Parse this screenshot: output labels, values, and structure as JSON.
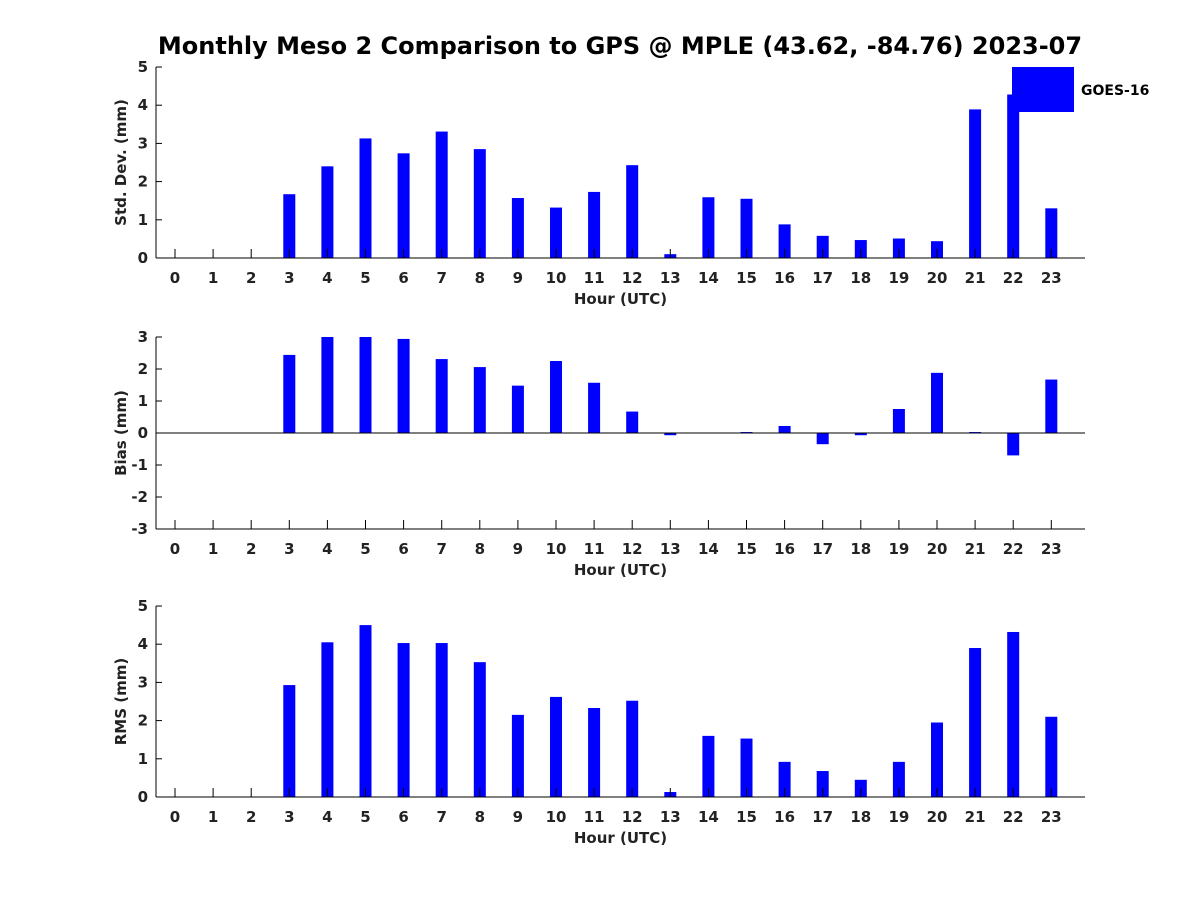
{
  "title": "Monthly Meso 2 Comparison to GPS @ MPLE (43.62, -84.76) 2023-07",
  "legend": {
    "label": "GOES-16",
    "color": "#0000ff"
  },
  "chart_data": [
    {
      "type": "bar",
      "name": "stddev",
      "xlabel": "Hour (UTC)",
      "ylabel": "Std. Dev. (mm)",
      "ylim": [
        0,
        5
      ],
      "yticks": [
        0,
        1,
        2,
        3,
        4,
        5
      ],
      "categories": [
        "0",
        "1",
        "2",
        "3",
        "4",
        "5",
        "6",
        "7",
        "8",
        "9",
        "10",
        "11",
        "12",
        "13",
        "14",
        "15",
        "16",
        "17",
        "18",
        "19",
        "20",
        "21",
        "22",
        "23"
      ],
      "values": [
        0,
        0,
        0,
        1.67,
        2.4,
        3.13,
        2.74,
        3.31,
        2.85,
        1.57,
        1.32,
        1.73,
        2.43,
        0.1,
        1.59,
        1.55,
        0.88,
        0.58,
        0.47,
        0.51,
        0.44,
        3.89,
        4.28,
        1.3
      ],
      "color": "#0000ff"
    },
    {
      "type": "bar",
      "name": "bias",
      "xlabel": "Hour (UTC)",
      "ylabel": "Bias (mm)",
      "ylim": [
        -3,
        3
      ],
      "yticks": [
        -3,
        -2,
        -1,
        0,
        1,
        2,
        3
      ],
      "categories": [
        "0",
        "1",
        "2",
        "3",
        "4",
        "5",
        "6",
        "7",
        "8",
        "9",
        "10",
        "11",
        "12",
        "13",
        "14",
        "15",
        "16",
        "17",
        "18",
        "19",
        "20",
        "21",
        "22",
        "23"
      ],
      "values": [
        0,
        0,
        0,
        2.44,
        3.0,
        3.0,
        2.94,
        2.31,
        2.06,
        1.48,
        2.25,
        1.57,
        0.67,
        -0.07,
        0,
        0.03,
        0.22,
        -0.35,
        -0.07,
        0.75,
        1.88,
        0.03,
        -0.7,
        1.67
      ],
      "color": "#0000ff"
    },
    {
      "type": "bar",
      "name": "rms",
      "xlabel": "Hour (UTC)",
      "ylabel": "RMS (mm)",
      "ylim": [
        0,
        5
      ],
      "yticks": [
        0,
        1,
        2,
        3,
        4,
        5
      ],
      "categories": [
        "0",
        "1",
        "2",
        "3",
        "4",
        "5",
        "6",
        "7",
        "8",
        "9",
        "10",
        "11",
        "12",
        "13",
        "14",
        "15",
        "16",
        "17",
        "18",
        "19",
        "20",
        "21",
        "22",
        "23"
      ],
      "values": [
        0,
        0,
        0,
        2.93,
        4.05,
        4.5,
        4.03,
        4.03,
        3.53,
        2.15,
        2.62,
        2.33,
        2.52,
        0.13,
        1.6,
        1.53,
        0.92,
        0.68,
        0.45,
        0.92,
        1.95,
        3.9,
        4.32,
        2.1
      ],
      "color": "#0000ff"
    }
  ]
}
